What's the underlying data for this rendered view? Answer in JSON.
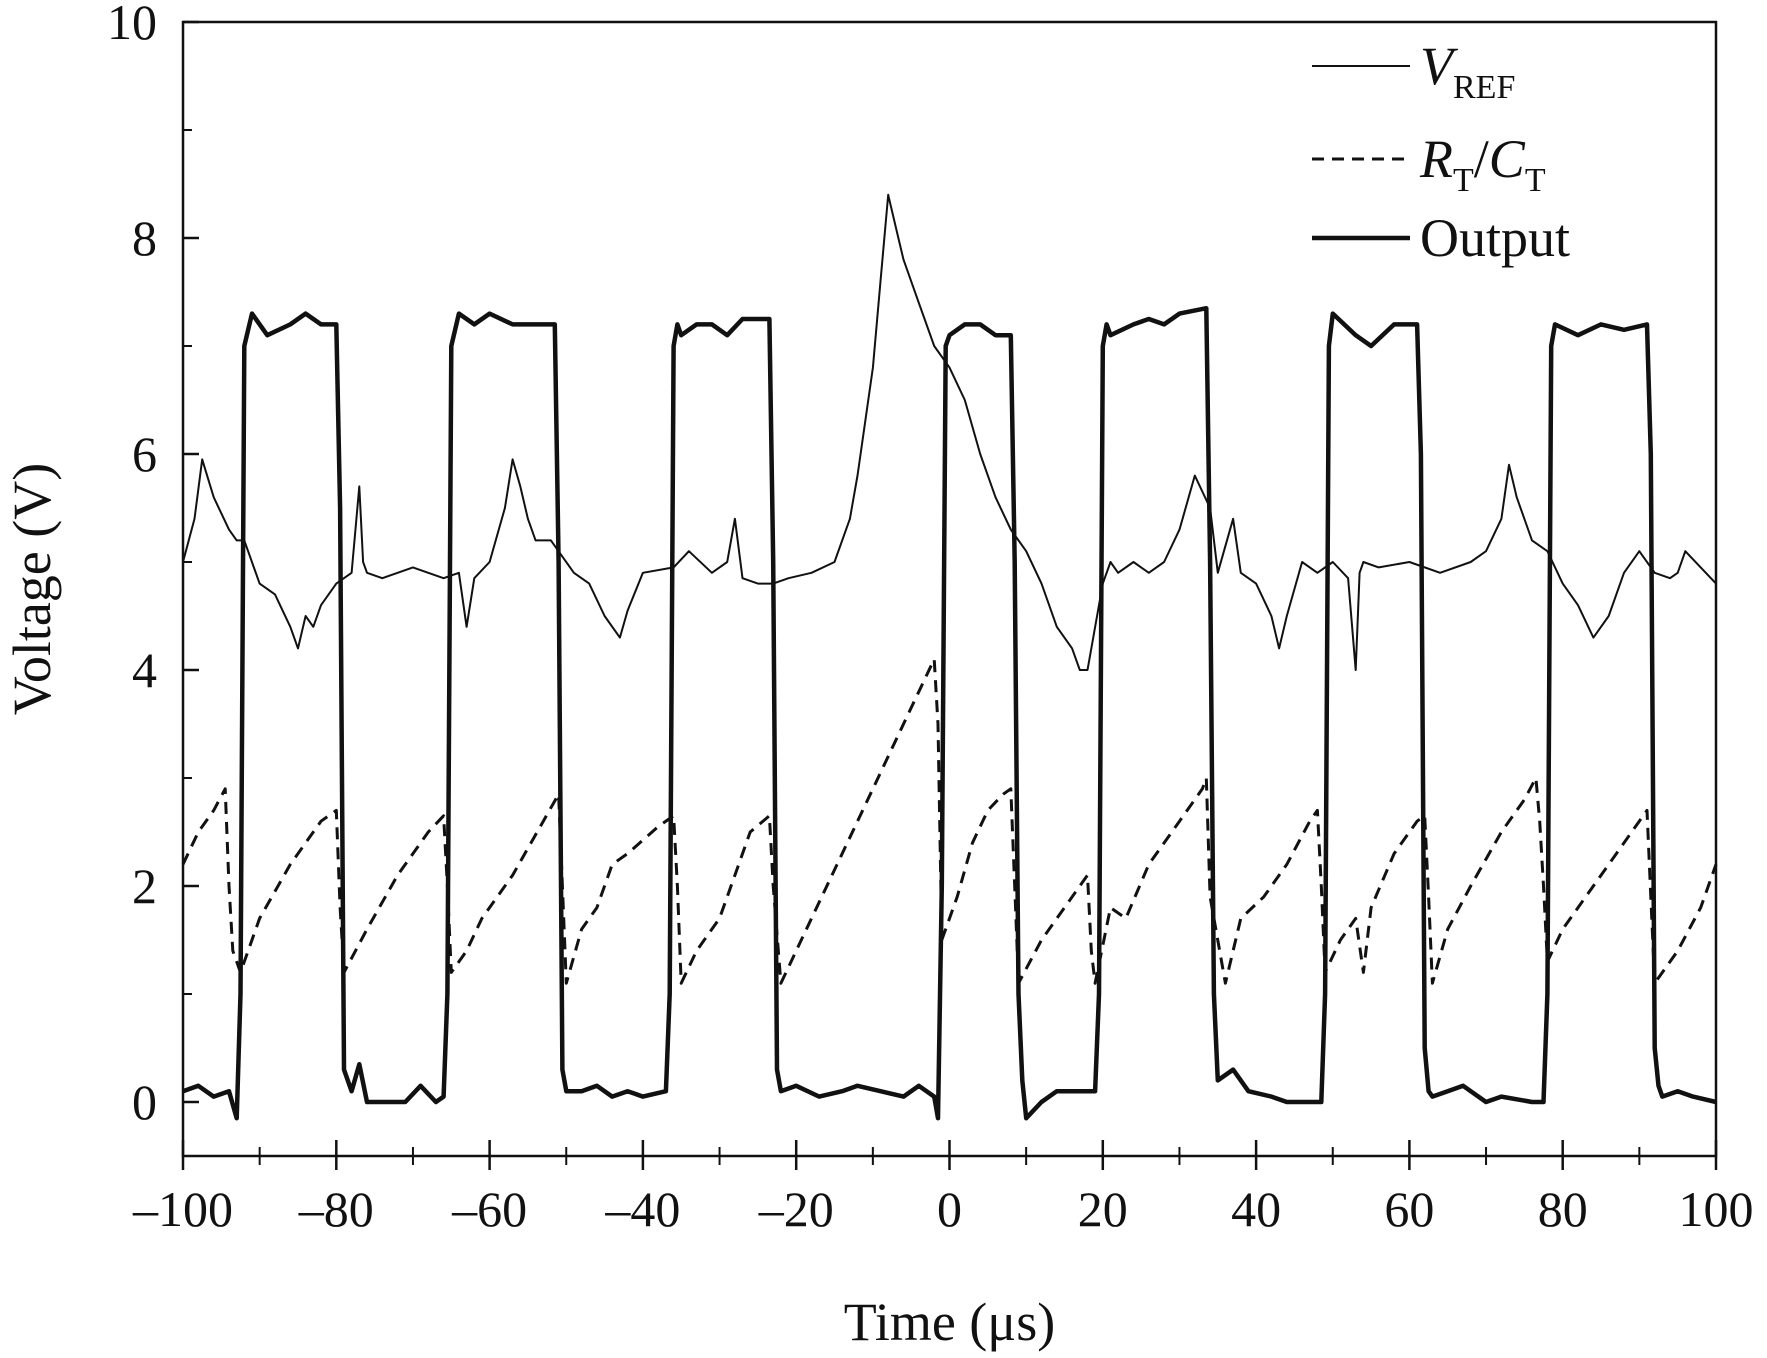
{
  "chart_data": {
    "type": "line",
    "title": "",
    "xlabel": "Time (μs)",
    "ylabel": "Voltage (V)",
    "xlim": [
      -100,
      100
    ],
    "ylim": [
      -0.5,
      10
    ],
    "xticks": [
      -100,
      -80,
      -60,
      -40,
      -20,
      0,
      20,
      40,
      60,
      80,
      100
    ],
    "xtick_labels": [
      "–100",
      "–80",
      "–60",
      "–40",
      "–20",
      "0",
      "20",
      "40",
      "60",
      "80",
      "100"
    ],
    "yticks": [
      0,
      2,
      4,
      6,
      8,
      10
    ],
    "ytick_labels": [
      "0",
      "2",
      "4",
      "6",
      "8",
      "10"
    ],
    "grid": false,
    "legend_position": "top-right",
    "legend": [
      {
        "italic": "V",
        "sub": "REF",
        "after": "",
        "style": "thin"
      },
      {
        "italic": "R",
        "sub": "T",
        "after": "/",
        "italic2": "C",
        "sub2": "T",
        "style": "dashed"
      },
      {
        "text": "Output",
        "style": "thick"
      }
    ],
    "series": [
      {
        "name": "VREF",
        "style": "thin",
        "x": [
          -100,
          -98.5,
          -97.5,
          -96,
          -94,
          -93,
          -92,
          -90,
          -88,
          -86,
          -85,
          -84,
          -83,
          -82,
          -80,
          -78,
          -77,
          -76.5,
          -76,
          -74,
          -70,
          -66,
          -64,
          -63,
          -62,
          -60,
          -58,
          -57,
          -56,
          -55,
          -54,
          -52,
          -49,
          -47,
          -45,
          -43,
          -42,
          -40,
          -36,
          -34,
          -31,
          -29,
          -28,
          -27,
          -25,
          -23,
          -21,
          -18,
          -15,
          -13,
          -12,
          -10,
          -9,
          -8,
          -7,
          -6,
          -4,
          -2,
          0,
          2,
          4,
          6,
          8,
          10,
          12,
          14,
          16,
          17,
          18,
          20,
          21,
          22,
          24,
          26,
          28,
          30,
          32,
          34,
          35,
          37,
          38,
          40,
          42,
          43,
          44,
          46,
          48,
          50,
          52,
          53,
          53.5,
          54,
          56,
          60,
          64,
          68,
          70,
          72,
          73,
          74,
          76,
          78,
          80,
          82,
          84,
          86,
          88,
          90,
          92,
          94,
          95,
          96,
          98,
          100
        ],
        "y": [
          5.0,
          5.4,
          5.95,
          5.6,
          5.3,
          5.2,
          5.2,
          4.8,
          4.7,
          4.4,
          4.2,
          4.5,
          4.4,
          4.6,
          4.8,
          4.9,
          5.7,
          5.0,
          4.9,
          4.85,
          4.95,
          4.85,
          4.9,
          4.4,
          4.85,
          5.0,
          5.5,
          5.95,
          5.7,
          5.4,
          5.2,
          5.2,
          4.9,
          4.8,
          4.5,
          4.3,
          4.55,
          4.9,
          4.95,
          5.1,
          4.9,
          5.0,
          5.4,
          4.85,
          4.8,
          4.8,
          4.85,
          4.9,
          5.0,
          5.4,
          5.8,
          6.8,
          7.6,
          8.4,
          8.1,
          7.8,
          7.4,
          7.0,
          6.8,
          6.5,
          6.0,
          5.6,
          5.3,
          5.1,
          4.8,
          4.4,
          4.2,
          4.0,
          4.0,
          4.8,
          5.0,
          4.9,
          5.0,
          4.9,
          5.0,
          5.3,
          5.8,
          5.5,
          4.9,
          5.4,
          4.9,
          4.8,
          4.5,
          4.2,
          4.5,
          5.0,
          4.9,
          5.0,
          4.85,
          4.0,
          4.9,
          5.0,
          4.95,
          5.0,
          4.9,
          5.0,
          5.1,
          5.4,
          5.9,
          5.6,
          5.2,
          5.1,
          4.8,
          4.6,
          4.3,
          4.5,
          4.9,
          5.1,
          4.9,
          4.85,
          4.9,
          5.1,
          4.95,
          4.8
        ]
      },
      {
        "name": "RT/CT",
        "style": "dashed",
        "x": [
          -100,
          -98,
          -96,
          -94.5,
          -94,
          -93.5,
          -92.5,
          -90,
          -86,
          -82,
          -80,
          -79.5,
          -79,
          -76,
          -72,
          -68,
          -66,
          -65.5,
          -65,
          -63,
          -61,
          -57,
          -53,
          -51,
          -50.5,
          -50,
          -48,
          -46,
          -44,
          -42,
          -38,
          -36,
          -35.5,
          -35,
          -33,
          -30,
          -28,
          -26,
          -23.5,
          -23,
          -22,
          -18,
          -14,
          -10,
          -6,
          -2,
          -1.5,
          -1,
          1,
          3,
          5,
          7,
          8,
          8.5,
          9,
          12,
          15,
          18,
          18.5,
          19,
          21,
          23,
          26,
          30,
          33,
          33.5,
          34,
          36,
          38,
          41,
          44,
          47,
          48,
          48.5,
          49,
          51,
          53,
          54,
          55,
          58,
          61,
          62,
          62.5,
          63,
          65,
          68,
          72,
          75,
          76.5,
          77,
          77.5,
          78,
          80,
          83,
          87,
          90,
          91,
          91.5,
          92,
          95,
          98,
          100
        ],
        "y": [
          2.2,
          2.5,
          2.7,
          2.9,
          2.0,
          1.4,
          1.2,
          1.7,
          2.2,
          2.6,
          2.7,
          1.8,
          1.2,
          1.6,
          2.1,
          2.5,
          2.65,
          2.0,
          1.2,
          1.4,
          1.7,
          2.1,
          2.6,
          2.85,
          2.0,
          1.1,
          1.6,
          1.8,
          2.2,
          2.3,
          2.55,
          2.65,
          2.0,
          1.1,
          1.4,
          1.7,
          2.1,
          2.5,
          2.65,
          2.0,
          1.1,
          1.7,
          2.3,
          2.9,
          3.5,
          4.1,
          3.5,
          1.5,
          1.9,
          2.4,
          2.7,
          2.85,
          2.9,
          2.0,
          1.1,
          1.5,
          1.8,
          2.1,
          1.4,
          1.1,
          1.8,
          1.7,
          2.2,
          2.6,
          2.9,
          3.0,
          1.9,
          1.1,
          1.7,
          1.9,
          2.2,
          2.6,
          2.7,
          2.0,
          1.2,
          1.5,
          1.7,
          1.2,
          1.8,
          2.3,
          2.6,
          2.65,
          1.9,
          1.1,
          1.6,
          2.0,
          2.5,
          2.8,
          3.0,
          2.6,
          2.0,
          1.3,
          1.6,
          1.9,
          2.3,
          2.6,
          2.7,
          1.9,
          1.1,
          1.4,
          1.8,
          2.2
        ]
      },
      {
        "name": "Output",
        "style": "thick",
        "x": [
          -100,
          -98,
          -96,
          -94,
          -93,
          -92.5,
          -92,
          -91,
          -89,
          -86,
          -84,
          -82,
          -80,
          -79.5,
          -79,
          -78,
          -77,
          -76,
          -74,
          -71,
          -69,
          -67,
          -66,
          -65.5,
          -65,
          -64,
          -62,
          -60,
          -57,
          -54,
          -51.5,
          -51,
          -50.5,
          -50,
          -48,
          -46,
          -44,
          -42,
          -40,
          -37,
          -36.5,
          -36,
          -35.5,
          -35,
          -33,
          -31,
          -29,
          -27,
          -23.5,
          -23,
          -22.5,
          -22,
          -20,
          -17,
          -14,
          -12,
          -9,
          -6,
          -4,
          -2,
          -1.5,
          -1,
          -0.5,
          0,
          2,
          4,
          6,
          8,
          8.5,
          9,
          9.5,
          10,
          12,
          14,
          17,
          19,
          19.5,
          20,
          20.5,
          21,
          24,
          26,
          28,
          30,
          33.5,
          34,
          34.5,
          35,
          37,
          39,
          42,
          44,
          47,
          48.5,
          49,
          49.5,
          50,
          53,
          55,
          58,
          61,
          61.5,
          62,
          62.5,
          63,
          65,
          67,
          70,
          72,
          76,
          77.5,
          78,
          78.5,
          79,
          82,
          85,
          88,
          91,
          91.5,
          92,
          92.5,
          93,
          95,
          97,
          100
        ],
        "y": [
          0.1,
          0.15,
          0.05,
          0.1,
          -0.15,
          1.0,
          7.0,
          7.3,
          7.1,
          7.2,
          7.3,
          7.2,
          7.2,
          5.5,
          0.3,
          0.1,
          0.35,
          0.0,
          0.0,
          0.0,
          0.15,
          0.0,
          0.05,
          1.0,
          7.0,
          7.3,
          7.2,
          7.3,
          7.2,
          7.2,
          7.2,
          5.0,
          0.3,
          0.1,
          0.1,
          0.15,
          0.05,
          0.1,
          0.05,
          0.1,
          1.0,
          7.0,
          7.2,
          7.1,
          7.2,
          7.2,
          7.1,
          7.25,
          7.25,
          5.0,
          0.3,
          0.1,
          0.15,
          0.05,
          0.1,
          0.15,
          0.1,
          0.05,
          0.15,
          0.05,
          -0.15,
          2.0,
          7.0,
          7.1,
          7.2,
          7.2,
          7.1,
          7.1,
          5.0,
          1.0,
          0.2,
          -0.15,
          0.0,
          0.1,
          0.1,
          0.1,
          1.0,
          7.0,
          7.2,
          7.1,
          7.2,
          7.25,
          7.2,
          7.3,
          7.35,
          5.0,
          1.0,
          0.2,
          0.3,
          0.1,
          0.05,
          0.0,
          0.0,
          0.0,
          1.0,
          7.0,
          7.3,
          7.1,
          7.0,
          7.2,
          7.2,
          6.0,
          0.5,
          0.1,
          0.05,
          0.1,
          0.15,
          0.0,
          0.05,
          0.0,
          0.0,
          1.0,
          7.0,
          7.2,
          7.1,
          7.2,
          7.15,
          7.2,
          6.0,
          0.5,
          0.15,
          0.05,
          0.1,
          0.05,
          0.0
        ]
      }
    ]
  }
}
